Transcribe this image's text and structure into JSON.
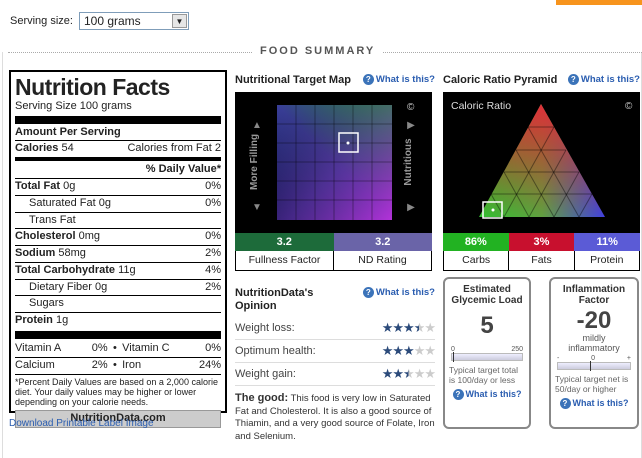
{
  "serving": {
    "label": "Serving size:",
    "value": "100 grams"
  },
  "summary_title": "FOOD SUMMARY",
  "nutrition_facts": {
    "title": "Nutrition Facts",
    "serving_size": "Serving Size  100 grams",
    "amount_per_serving": "Amount Per Serving",
    "calories_label": "Calories",
    "calories": "54",
    "calories_fat_label": "Calories from Fat",
    "calories_fat": "2",
    "dv_header": "% Daily Value*",
    "rows": [
      {
        "name": "Total Fat",
        "amount": "0g",
        "dv": "0%",
        "bold": true,
        "indent": false
      },
      {
        "name": "Saturated Fat",
        "amount": "0g",
        "dv": "0%",
        "bold": false,
        "indent": true
      },
      {
        "name": "Trans Fat",
        "amount": "",
        "dv": "",
        "bold": false,
        "indent": true
      },
      {
        "name": "Cholesterol",
        "amount": "0mg",
        "dv": "0%",
        "bold": true,
        "indent": false
      },
      {
        "name": "Sodium",
        "amount": "58mg",
        "dv": "2%",
        "bold": true,
        "indent": false
      },
      {
        "name": "Total Carbohydrate",
        "amount": "11g",
        "dv": "4%",
        "bold": true,
        "indent": false
      },
      {
        "name": "Dietary Fiber",
        "amount": "0g",
        "dv": "2%",
        "bold": false,
        "indent": true
      },
      {
        "name": "Sugars",
        "amount": "",
        "dv": "",
        "bold": false,
        "indent": true
      },
      {
        "name": "Protein",
        "amount": "1g",
        "dv": "",
        "bold": true,
        "indent": false
      }
    ],
    "vitamins": [
      {
        "a_name": "Vitamin A",
        "a_dv": "0%",
        "b_name": "Vitamin C",
        "b_dv": "0%"
      },
      {
        "a_name": "Calcium",
        "a_dv": "2%",
        "b_name": "Iron",
        "b_dv": "24%"
      }
    ],
    "footnote": "*Percent Daily Values are based on a 2,000 calorie diet. Your daily values may be higher or lower depending on your calorie needs.",
    "brand": "NutritionData.com"
  },
  "download_link": "Download Printable Label Image",
  "target_map": {
    "title": "Nutritional Target Map",
    "what": "What is this?",
    "left_label": "More Filling",
    "right_label": "Nutritious",
    "copyright": "©",
    "fullness_value": "3.2",
    "fullness_label": "Fullness Factor",
    "nd_value": "3.2",
    "nd_label": "ND Rating",
    "fullness_color": "#1d6b3a",
    "nd_color": "#6a64a8"
  },
  "pyramid": {
    "title": "Caloric Ratio Pyramid",
    "what": "What is this?",
    "inner_label": "Caloric Ratio",
    "copyright": "©",
    "carbs_value": "86%",
    "carbs_label": "Carbs",
    "carbs_color": "#22b222",
    "fats_value": "3%",
    "fats_label": "Fats",
    "fats_color": "#c8102e",
    "protein_value": "11%",
    "protein_label": "Protein",
    "protein_color": "#5b5bd6"
  },
  "opinion": {
    "title": "NutritionData's Opinion",
    "what": "What is this?",
    "rows": [
      {
        "label": "Weight loss:",
        "stars": 3.5
      },
      {
        "label": "Optimum health:",
        "stars": 3
      },
      {
        "label": "Weight gain:",
        "stars": 2.5
      }
    ],
    "good_label": "The good:",
    "good_text": " This food is very low in Saturated Fat and Cholesterol. It is also a good source of Thiamin, and a very good source of Folate, Iron and Selenium."
  },
  "glycemic": {
    "title": "Estimated Glycemic Load",
    "value": "5",
    "scale_min": "0",
    "scale_max": "250",
    "note": "Typical target total is 100/day or less",
    "what": "What is this?"
  },
  "inflammation": {
    "title": "Inflammation Factor",
    "value": "-20",
    "sub": "mildly inflammatory",
    "scale_min": "-",
    "scale_mid": "0",
    "scale_max": "+",
    "note": "Typical target net is 50/day or higher",
    "what": "What is this?"
  }
}
